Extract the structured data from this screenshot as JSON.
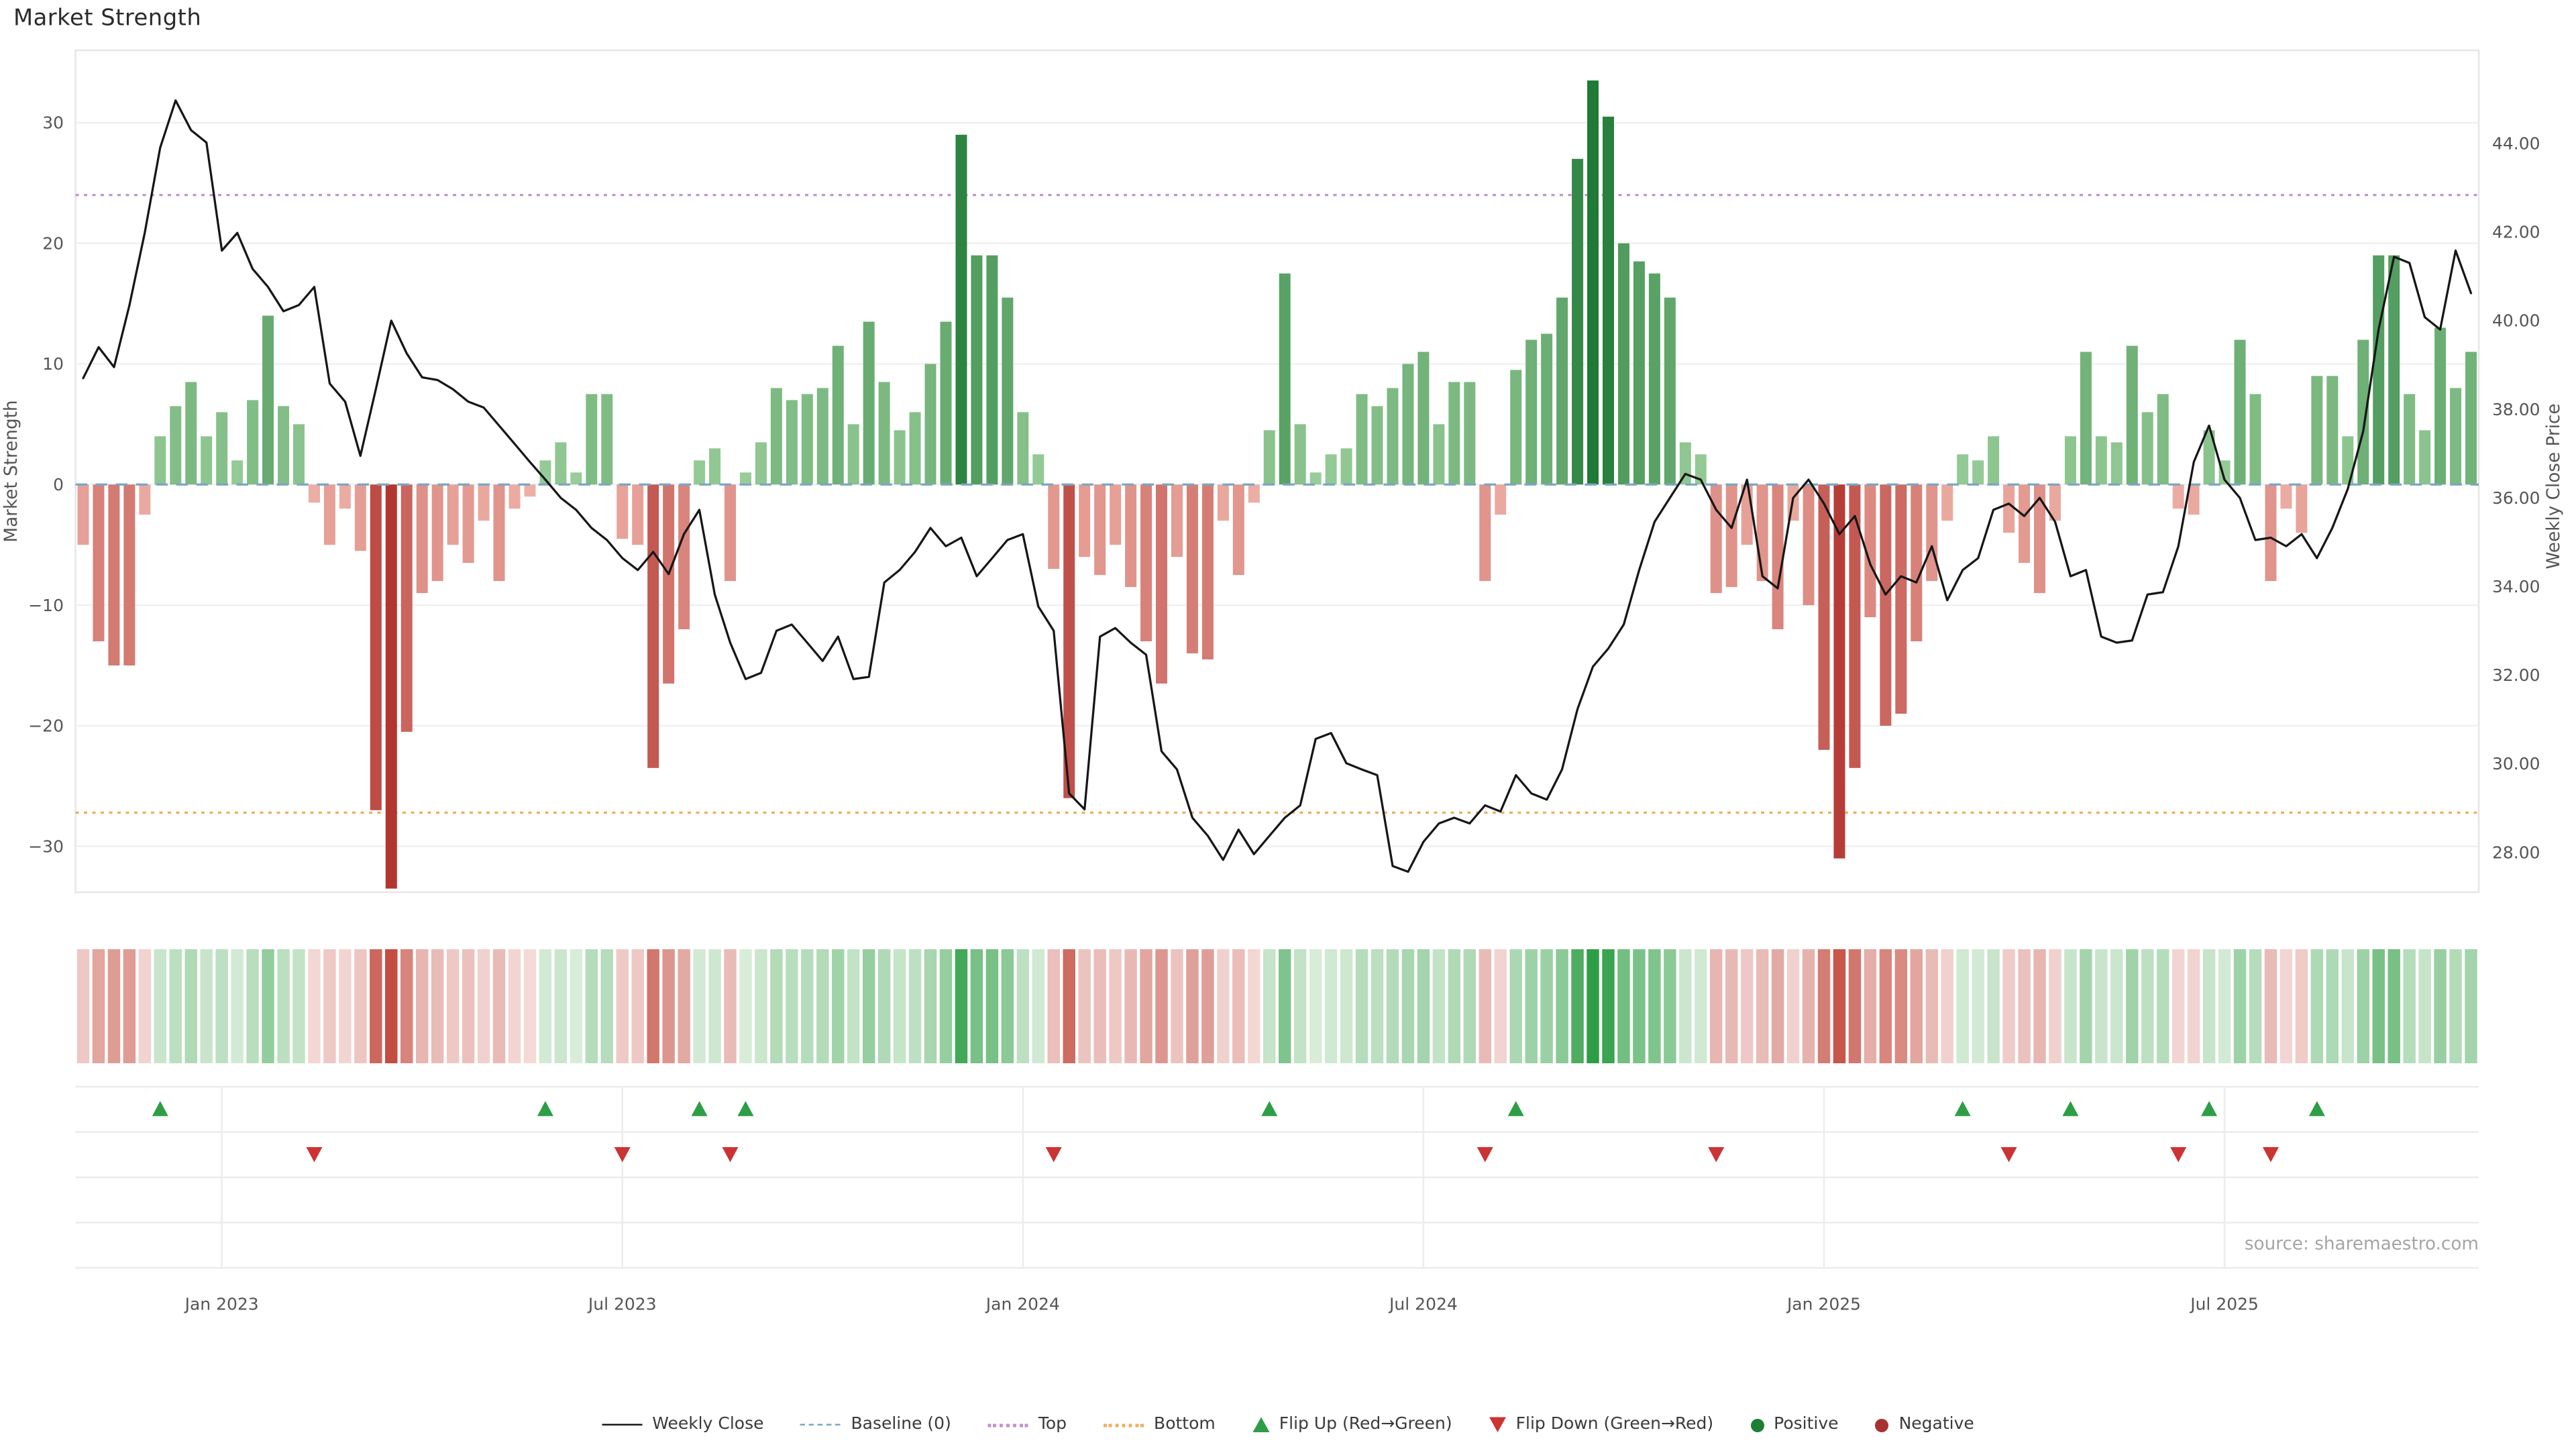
{
  "title": "Market Strength",
  "source": "source: sharemaestro.com",
  "colors": {
    "line": "#161616",
    "baseline": "#7aa6c2",
    "top": "#c490d1",
    "bottom": "#efae62",
    "flip_up": "#2d9e46",
    "flip_down": "#cc3333",
    "positive_dot": "#1e7e34",
    "negative_dot": "#a83232",
    "bar_pos_light": "#9ccf9c",
    "bar_pos_dark": "#1e7a34",
    "bar_neg_light": "#efb3a9",
    "bar_neg_dark": "#b23530",
    "heat_pos_light": "#ddefdd",
    "heat_pos_dark": "#2e9e46",
    "heat_neg_light": "#f5dedb",
    "heat_neg_dark": "#c44d42",
    "grid": "#f0f0f0",
    "panel_grid": "#ececec",
    "tick_text": "#555555",
    "source_text": "#a5a5a5"
  },
  "legend": {
    "items": [
      {
        "label": "Weekly Close",
        "type": "line",
        "color": "#161616"
      },
      {
        "label": "Baseline (0)",
        "type": "dashed",
        "color": "#7aa6c2"
      },
      {
        "label": "Top",
        "type": "dotted",
        "color": "#c490d1"
      },
      {
        "label": "Bottom",
        "type": "dotted",
        "color": "#efae62"
      },
      {
        "label": "Flip Up (Red→Green)",
        "type": "triangle-up",
        "color": "#2d9e46"
      },
      {
        "label": "Flip Down (Green→Red)",
        "type": "triangle-down",
        "color": "#cc3333"
      },
      {
        "label": "Positive",
        "type": "dot",
        "color": "#1e7e34"
      },
      {
        "label": "Negative",
        "type": "dot",
        "color": "#a83232"
      }
    ]
  },
  "chart_data": {
    "type": "bar",
    "subtype": "weekly bar+line combo with heatmap strip and flip markers",
    "title": "Market Strength",
    "x_count": 156,
    "x_axis": {
      "ticks": [
        {
          "index": 9,
          "label": "Jan 2023"
        },
        {
          "index": 35,
          "label": "Jul 2023"
        },
        {
          "index": 61,
          "label": "Jan 2024"
        },
        {
          "index": 87,
          "label": "Jul 2024"
        },
        {
          "index": 113,
          "label": "Jan 2025"
        },
        {
          "index": 139,
          "label": "Jul 2025"
        }
      ]
    },
    "left_axis": {
      "label": "Market Strength",
      "range": [
        -33.8,
        36.0
      ],
      "ticks": [
        {
          "v": 30,
          "label": "30"
        },
        {
          "v": 20,
          "label": "20"
        },
        {
          "v": 10,
          "label": "10"
        },
        {
          "v": 0,
          "label": "0"
        },
        {
          "v": -10,
          "label": "−10"
        },
        {
          "v": -20,
          "label": "−20"
        },
        {
          "v": -30,
          "label": "−30"
        }
      ]
    },
    "right_axis": {
      "label": "Weekly Close Price",
      "range": [
        27.1,
        46.1
      ],
      "ticks": [
        {
          "v": 44,
          "label": "44.00"
        },
        {
          "v": 42,
          "label": "42.00"
        },
        {
          "v": 40,
          "label": "40.00"
        },
        {
          "v": 38,
          "label": "38.00"
        },
        {
          "v": 36,
          "label": "36.00"
        },
        {
          "v": 34,
          "label": "34.00"
        },
        {
          "v": 32,
          "label": "32.00"
        },
        {
          "v": 30,
          "label": "30.00"
        },
        {
          "v": 28,
          "label": "28.00"
        }
      ]
    },
    "thresholds": {
      "baseline": 0,
      "top": 24,
      "bottom": -27.2
    },
    "series": [
      {
        "name": "Market Strength",
        "type": "bar",
        "axis": "left",
        "values": [
          -5,
          -13,
          -15,
          -15,
          -2.5,
          4,
          6.5,
          8.5,
          4,
          6,
          2,
          7,
          14,
          6.5,
          5,
          -1.5,
          -5,
          -2,
          -5.5,
          -27,
          -33.5,
          -20.5,
          -9,
          -8,
          -5,
          -6.5,
          -3,
          -8,
          -2,
          -1,
          2,
          3.5,
          1,
          7.5,
          7.5,
          -4.5,
          -5,
          -23.5,
          -16.5,
          -12,
          2,
          3,
          -8,
          1,
          3.5,
          8,
          7,
          7.5,
          8,
          11.5,
          5,
          13.5,
          8.5,
          4.5,
          6,
          10,
          13.5,
          29,
          19,
          19,
          15.5,
          6,
          2.5,
          -7,
          -26,
          -6,
          -7.5,
          -5,
          -8.5,
          -13,
          -16.5,
          -6,
          -14,
          -14.5,
          -3,
          -7.5,
          -1.5,
          4.5,
          17.5,
          5,
          1,
          2.5,
          3,
          7.5,
          6.5,
          8,
          10,
          11,
          5,
          8.5,
          8.5,
          -8,
          -2.5,
          9.5,
          12,
          12.5,
          15.5,
          27,
          33.5,
          30.5,
          20,
          18.5,
          17.5,
          15.5,
          3.5,
          2.5,
          -9,
          -8.5,
          -5,
          -8,
          -12,
          -3,
          -10,
          -22,
          -31,
          -23.5,
          -11,
          -20,
          -19,
          -13,
          -8,
          -3,
          2.5,
          2,
          4,
          -4,
          -6.5,
          -9,
          -3,
          4,
          11,
          4,
          3.5,
          11.5,
          6,
          7.5,
          -2,
          -2.5,
          4.5,
          2,
          12,
          7.5,
          -8,
          -2,
          -4,
          9,
          9,
          4,
          12,
          19,
          19,
          7.5,
          4.5,
          13,
          8,
          11
        ]
      },
      {
        "name": "Weekly Close",
        "type": "line",
        "axis": "right",
        "values": [
          38.7,
          39.4,
          38.95,
          40.35,
          41.98,
          43.9,
          44.97,
          44.3,
          44.02,
          41.58,
          41.98,
          41.17,
          40.76,
          40.21,
          40.35,
          40.76,
          38.58,
          38.17,
          36.95,
          38.45,
          40.0,
          39.26,
          38.72,
          38.66,
          38.45,
          38.17,
          38.04,
          37.63,
          37.22,
          36.81,
          36.41,
          36.0,
          35.73,
          35.32,
          35.05,
          34.64,
          34.37,
          34.78,
          34.28,
          35.18,
          35.73,
          33.82,
          32.73,
          31.91,
          32.05,
          33.0,
          33.14,
          32.73,
          32.32,
          32.87,
          31.91,
          31.96,
          34.09,
          34.37,
          34.78,
          35.32,
          34.91,
          35.1,
          34.23,
          34.64,
          35.05,
          35.18,
          33.55,
          33.0,
          29.33,
          28.97,
          32.87,
          33.06,
          32.73,
          32.46,
          30.28,
          29.87,
          28.78,
          28.37,
          27.83,
          28.51,
          27.96,
          28.37,
          28.78,
          29.06,
          30.56,
          30.69,
          30.01,
          29.87,
          29.74,
          27.69,
          27.56,
          28.24,
          28.65,
          28.78,
          28.65,
          29.06,
          28.92,
          29.74,
          29.33,
          29.19,
          29.87,
          31.23,
          32.19,
          32.6,
          33.14,
          34.37,
          35.46,
          36.0,
          36.54,
          36.41,
          35.73,
          35.32,
          36.41,
          34.23,
          33.96,
          36.0,
          36.41,
          35.87,
          35.18,
          35.59,
          34.5,
          33.82,
          34.23,
          34.09,
          34.91,
          33.69,
          34.37,
          34.64,
          35.73,
          35.87,
          35.59,
          36.0,
          35.46,
          34.23,
          34.37,
          32.87,
          32.73,
          32.78,
          33.82,
          33.87,
          34.91,
          36.81,
          37.63,
          36.41,
          36.0,
          35.05,
          35.1,
          34.91,
          35.18,
          34.64,
          35.32,
          36.2,
          37.5,
          39.8,
          41.44,
          41.3,
          40.08,
          39.8,
          41.58,
          40.62
        ]
      }
    ],
    "flip_up_indices": [
      5,
      30,
      40,
      43,
      77,
      93,
      122,
      129,
      138,
      145
    ],
    "flip_down_indices": [
      15,
      35,
      42,
      63,
      91,
      106,
      125,
      136,
      142
    ],
    "heatmap": "cell colors derived from Market Strength bar values (red negative → green positive)"
  }
}
